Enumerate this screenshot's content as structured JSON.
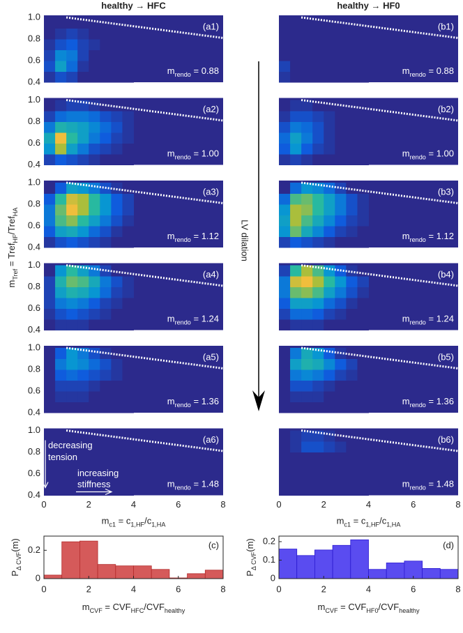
{
  "chart_data": [
    {
      "type": "heatmap",
      "columns": [
        {
          "title": "healthy → HFC"
        },
        {
          "title": "healthy → HF0"
        }
      ],
      "colormap": "parula",
      "xlim": [
        0,
        8
      ],
      "ylim": [
        0.4,
        1.0
      ],
      "xticks": [
        0,
        2,
        4,
        6,
        8
      ],
      "yticks": [
        0.4,
        0.6,
        0.8,
        {
          "value": 1,
          "label": "1.0"
        }
      ],
      "xbins": [
        0,
        0.5,
        1,
        1.5,
        2,
        2.5,
        3,
        3.5,
        4
      ],
      "ybins": [
        0.4,
        0.5,
        0.6,
        0.7,
        0.8,
        0.9,
        1.0
      ],
      "boundary": {
        "x": [
          1,
          8
        ],
        "y": [
          1.0,
          0.81
        ]
      },
      "xlabel": [
        {
          "text": "m"
        },
        {
          "sub": "c1"
        },
        {
          "text": " = c"
        },
        {
          "sub": "1,HF"
        },
        {
          "text": "/c"
        },
        {
          "sub": "1,HA"
        }
      ],
      "ylabel": [
        {
          "text": "m"
        },
        {
          "sub": "Tref"
        },
        {
          "text": " = Tref"
        },
        {
          "sub": "HF"
        },
        {
          "text": "/Tref"
        },
        {
          "sub": "HA"
        }
      ],
      "mrendo_label": [
        {
          "text": "m"
        },
        {
          "sub": "rendo"
        },
        {
          "text": " = "
        }
      ],
      "annotations": [
        "decreasing",
        "tension",
        "increasing",
        "stiffness"
      ],
      "side_label": "LV dilation",
      "panels": [
        {
          "label": "(a1)",
          "col": 0,
          "row": 0,
          "mrendo": "0.88",
          "z": [
            [
              0.05,
              0.15,
              0.1,
              0,
              0,
              0,
              0,
              0
            ],
            [
              0.15,
              0.45,
              0.25,
              0.05,
              0,
              0,
              0,
              0
            ],
            [
              0.1,
              0.35,
              0.3,
              0.1,
              0,
              0,
              0,
              0
            ],
            [
              0.05,
              0.15,
              0.2,
              0.1,
              0.05,
              0,
              0,
              0
            ],
            [
              0,
              0.05,
              0.1,
              0.05,
              0,
              0,
              0,
              0
            ],
            [
              0,
              0,
              0,
              0,
              0,
              0,
              0,
              0
            ]
          ]
        },
        {
          "label": "(a2)",
          "col": 0,
          "row": 1,
          "mrendo": "1.00",
          "z": [
            [
              0.1,
              0.2,
              0.15,
              0.1,
              0.05,
              0,
              0,
              0
            ],
            [
              0.4,
              0.8,
              0.45,
              0.3,
              0.15,
              0.1,
              0.05,
              0
            ],
            [
              0.5,
              0.9,
              0.6,
              0.45,
              0.3,
              0.2,
              0.1,
              0.05
            ],
            [
              0.3,
              0.55,
              0.5,
              0.45,
              0.35,
              0.25,
              0.15,
              0.05
            ],
            [
              0.1,
              0.25,
              0.3,
              0.3,
              0.25,
              0.15,
              0.1,
              0.05
            ],
            [
              0,
              0.05,
              0.1,
              0.1,
              0.05,
              0,
              0,
              0
            ]
          ]
        },
        {
          "label": "(a3)",
          "col": 0,
          "row": 2,
          "mrendo": "1.12",
          "z": [
            [
              0.05,
              0.15,
              0.2,
              0.15,
              0.1,
              0.05,
              0,
              0
            ],
            [
              0.2,
              0.45,
              0.5,
              0.4,
              0.25,
              0.15,
              0.05,
              0
            ],
            [
              0.3,
              0.65,
              0.75,
              0.6,
              0.45,
              0.3,
              0.15,
              0.05
            ],
            [
              0.3,
              0.7,
              0.9,
              0.8,
              0.6,
              0.4,
              0.2,
              0.1
            ],
            [
              0.2,
              0.6,
              0.85,
              0.8,
              0.6,
              0.4,
              0.2,
              0.1
            ],
            [
              0,
              0.2,
              0.45,
              0.4,
              0.3,
              0.15,
              0.05,
              0
            ]
          ]
        },
        {
          "label": "(a4)",
          "col": 0,
          "row": 3,
          "mrendo": "1.24",
          "z": [
            [
              0,
              0.05,
              0.05,
              0.05,
              0,
              0,
              0,
              0
            ],
            [
              0.05,
              0.15,
              0.2,
              0.15,
              0.1,
              0.05,
              0,
              0
            ],
            [
              0.1,
              0.3,
              0.35,
              0.3,
              0.2,
              0.1,
              0.05,
              0
            ],
            [
              0.1,
              0.45,
              0.55,
              0.5,
              0.4,
              0.25,
              0.1,
              0.05
            ],
            [
              0.1,
              0.55,
              0.7,
              0.65,
              0.5,
              0.3,
              0.15,
              0.05
            ],
            [
              0,
              0.4,
              0.6,
              0.45,
              0.3,
              0.1,
              0,
              0
            ]
          ]
        },
        {
          "label": "(a5)",
          "col": 0,
          "row": 4,
          "mrendo": "1.36",
          "z": [
            [
              0,
              0,
              0,
              0,
              0,
              0,
              0,
              0
            ],
            [
              0,
              0.05,
              0.05,
              0.05,
              0,
              0,
              0,
              0
            ],
            [
              0,
              0.1,
              0.1,
              0.1,
              0.05,
              0,
              0,
              0
            ],
            [
              0,
              0.2,
              0.25,
              0.2,
              0.15,
              0.1,
              0.05,
              0
            ],
            [
              0,
              0.3,
              0.4,
              0.35,
              0.25,
              0.15,
              0.05,
              0
            ],
            [
              0,
              0.2,
              0.4,
              0.3,
              0.15,
              0.05,
              0,
              0
            ]
          ]
        },
        {
          "label": "(a6)",
          "col": 0,
          "row": 5,
          "mrendo": "1.48",
          "z": [
            [
              0,
              0,
              0,
              0,
              0,
              0,
              0,
              0
            ],
            [
              0,
              0,
              0,
              0,
              0,
              0,
              0,
              0
            ],
            [
              0,
              0,
              0,
              0,
              0,
              0,
              0,
              0
            ],
            [
              0,
              0,
              0,
              0,
              0,
              0,
              0,
              0
            ],
            [
              0,
              0,
              0,
              0,
              0,
              0,
              0,
              0
            ],
            [
              0,
              0,
              0,
              0,
              0,
              0,
              0,
              0
            ]
          ]
        },
        {
          "label": "(b1)",
          "col": 1,
          "row": 0,
          "mrendo": "0.88",
          "z": [
            [
              0.05,
              0,
              0,
              0,
              0,
              0,
              0,
              0
            ],
            [
              0.1,
              0,
              0,
              0,
              0,
              0,
              0,
              0
            ],
            [
              0,
              0,
              0,
              0,
              0,
              0,
              0,
              0
            ],
            [
              0,
              0,
              0,
              0,
              0,
              0,
              0,
              0
            ],
            [
              0,
              0,
              0,
              0,
              0,
              0,
              0,
              0
            ],
            [
              0,
              0,
              0,
              0,
              0,
              0,
              0,
              0
            ]
          ]
        },
        {
          "label": "(b2)",
          "col": 1,
          "row": 1,
          "mrendo": "1.00",
          "z": [
            [
              0.05,
              0.1,
              0.05,
              0,
              0,
              0,
              0,
              0
            ],
            [
              0.2,
              0.4,
              0.2,
              0.1,
              0.05,
              0,
              0,
              0
            ],
            [
              0.25,
              0.45,
              0.3,
              0.15,
              0.05,
              0,
              0,
              0
            ],
            [
              0.15,
              0.3,
              0.25,
              0.15,
              0.05,
              0,
              0,
              0
            ],
            [
              0.05,
              0.15,
              0.15,
              0.1,
              0.05,
              0,
              0,
              0
            ],
            [
              0,
              0.05,
              0.05,
              0,
              0,
              0,
              0,
              0
            ]
          ]
        },
        {
          "label": "(b3)",
          "col": 1,
          "row": 2,
          "mrendo": "1.12",
          "z": [
            [
              0.1,
              0.2,
              0.15,
              0.1,
              0.05,
              0,
              0,
              0
            ],
            [
              0.4,
              0.7,
              0.5,
              0.35,
              0.2,
              0.1,
              0.05,
              0
            ],
            [
              0.45,
              0.8,
              0.65,
              0.5,
              0.35,
              0.2,
              0.1,
              0.05
            ],
            [
              0.4,
              0.8,
              0.75,
              0.6,
              0.45,
              0.3,
              0.15,
              0.05
            ],
            [
              0.25,
              0.65,
              0.7,
              0.6,
              0.45,
              0.3,
              0.15,
              0.05
            ],
            [
              0,
              0.25,
              0.4,
              0.35,
              0.25,
              0.1,
              0,
              0
            ]
          ]
        },
        {
          "label": "(b4)",
          "col": 1,
          "row": 3,
          "mrendo": "1.24",
          "z": [
            [
              0,
              0.05,
              0.05,
              0.05,
              0,
              0,
              0,
              0
            ],
            [
              0.1,
              0.25,
              0.25,
              0.2,
              0.1,
              0.05,
              0,
              0
            ],
            [
              0.2,
              0.45,
              0.45,
              0.4,
              0.25,
              0.15,
              0.05,
              0
            ],
            [
              0.3,
              0.7,
              0.75,
              0.65,
              0.45,
              0.3,
              0.15,
              0.05
            ],
            [
              0.3,
              0.85,
              0.9,
              0.8,
              0.6,
              0.4,
              0.2,
              0.1
            ],
            [
              0.1,
              0.6,
              0.8,
              0.65,
              0.4,
              0.2,
              0.05,
              0
            ]
          ]
        },
        {
          "label": "(b5)",
          "col": 1,
          "row": 4,
          "mrendo": "1.36",
          "z": [
            [
              0,
              0,
              0,
              0,
              0,
              0,
              0,
              0
            ],
            [
              0,
              0.05,
              0.05,
              0.05,
              0,
              0,
              0,
              0
            ],
            [
              0,
              0.15,
              0.15,
              0.1,
              0.05,
              0,
              0,
              0
            ],
            [
              0,
              0.3,
              0.35,
              0.3,
              0.2,
              0.1,
              0.05,
              0
            ],
            [
              0,
              0.45,
              0.55,
              0.5,
              0.35,
              0.2,
              0.1,
              0
            ],
            [
              0,
              0.3,
              0.5,
              0.4,
              0.2,
              0.05,
              0,
              0
            ]
          ]
        },
        {
          "label": "(b6)",
          "col": 1,
          "row": 5,
          "mrendo": "1.48",
          "z": [
            [
              0,
              0,
              0,
              0,
              0,
              0,
              0,
              0
            ],
            [
              0,
              0,
              0,
              0,
              0,
              0,
              0,
              0
            ],
            [
              0,
              0,
              0,
              0,
              0,
              0,
              0,
              0
            ],
            [
              0,
              0,
              0,
              0,
              0,
              0,
              0,
              0
            ],
            [
              0,
              0.05,
              0.15,
              0.15,
              0.1,
              0.05,
              0,
              0
            ],
            [
              0,
              0.05,
              0.1,
              0.1,
              0.05,
              0,
              0,
              0
            ]
          ]
        }
      ]
    },
    {
      "type": "histogram",
      "label": "(c)",
      "color": "#d55a5a",
      "edge": "#b22a2a",
      "bins": [
        0,
        0.8,
        1.6,
        2.4,
        3.2,
        4.0,
        4.8,
        5.6,
        6.4,
        7.2,
        8.0
      ],
      "values": [
        0.025,
        0.26,
        0.265,
        0.1,
        0.09,
        0.09,
        0.065,
        0.005,
        0.035,
        0.06
      ],
      "xlim": [
        0,
        8
      ],
      "xticks": [
        0,
        2,
        4,
        6,
        8
      ],
      "ylim": [
        0,
        0.3
      ],
      "yticks": [
        0,
        0.2
      ],
      "xlabel": [
        {
          "text": "m"
        },
        {
          "sub": "CVF"
        },
        {
          "text": " = CVF"
        },
        {
          "sub": "HFC"
        },
        {
          "text": "/CVF"
        },
        {
          "sub": "healthy"
        }
      ],
      "ylabel": [
        {
          "text": "P"
        },
        {
          "sub": "Δ CVF"
        },
        {
          "text": "(m)"
        }
      ]
    },
    {
      "type": "histogram",
      "label": "(d)",
      "color": "#5a4cf0",
      "edge": "#2a1ad0",
      "bins": [
        0,
        0.8,
        1.6,
        2.4,
        3.2,
        4.0,
        4.8,
        5.6,
        6.4,
        7.2,
        8.0
      ],
      "values": [
        0.16,
        0.125,
        0.155,
        0.18,
        0.21,
        0.05,
        0.085,
        0.095,
        0.055,
        0.05
      ],
      "xlim": [
        0,
        8
      ],
      "xticks": [
        0,
        2,
        4,
        6,
        8
      ],
      "ylim": [
        0,
        0.23
      ],
      "yticks": [
        0,
        0.1,
        0.2
      ],
      "xlabel": [
        {
          "text": "m"
        },
        {
          "sub": "CVF"
        },
        {
          "text": " = CVF"
        },
        {
          "sub": "HF0"
        },
        {
          "text": "/CVF"
        },
        {
          "sub": "healthy"
        }
      ],
      "ylabel": [
        {
          "text": "P"
        },
        {
          "sub": "Δ CVF"
        },
        {
          "text": "(m)"
        }
      ]
    }
  ]
}
